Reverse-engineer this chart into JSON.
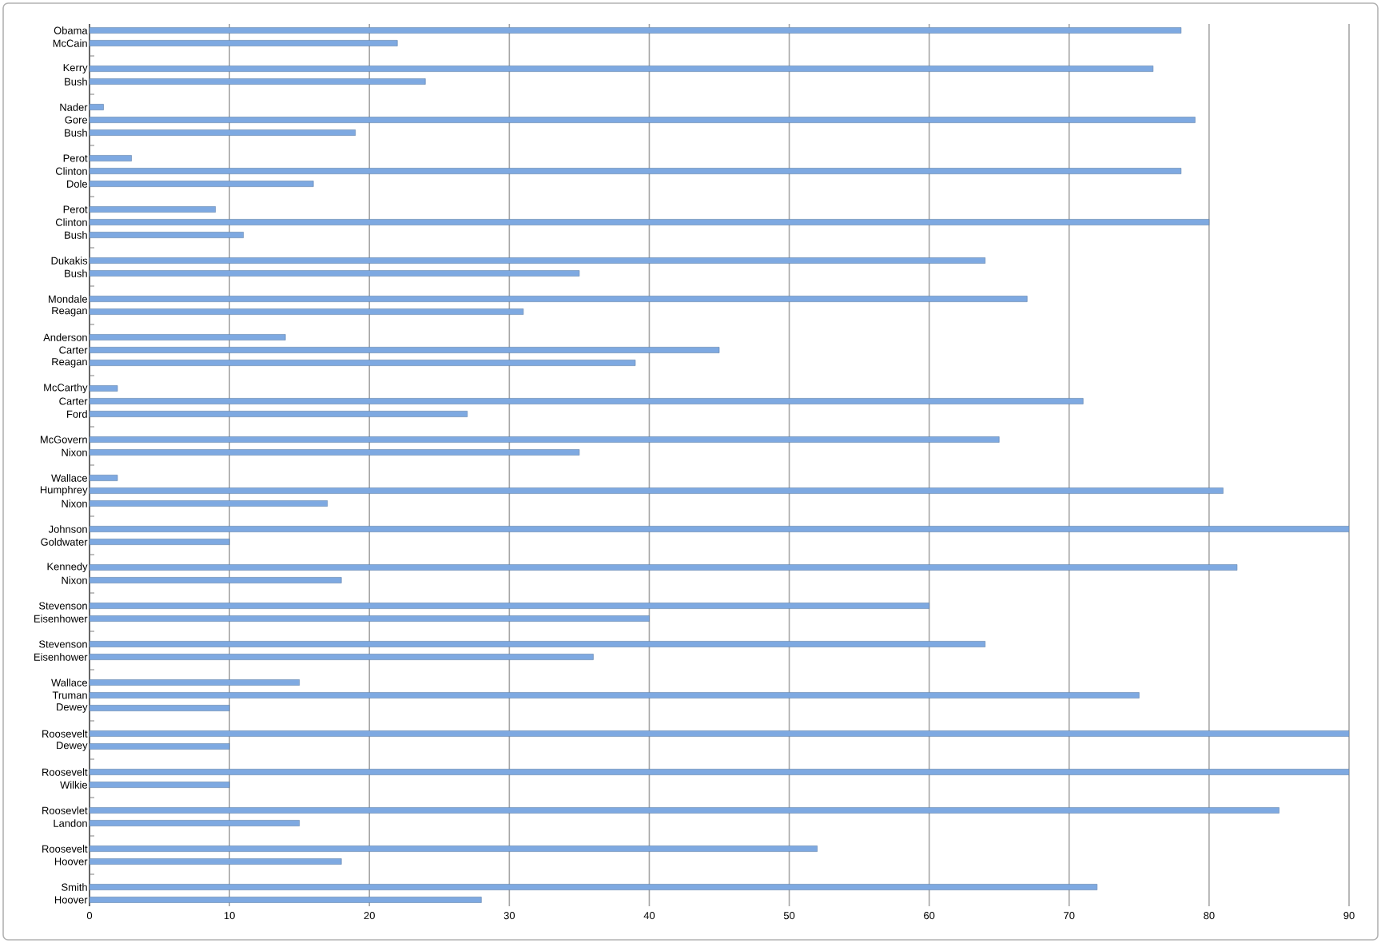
{
  "chart_data": {
    "type": "bar",
    "orientation": "horizontal",
    "color": "#7ea9e1",
    "grid": "x",
    "xlim": [
      0,
      90
    ],
    "xticks": [
      0,
      10,
      20,
      30,
      40,
      50,
      60,
      70,
      80,
      90
    ],
    "categories": [
      "Obama",
      "McCain",
      null,
      "Kerry",
      "Bush",
      null,
      "Nader",
      "Gore",
      "Bush",
      null,
      "Perot",
      "Clinton",
      "Dole",
      null,
      "Perot",
      "Clinton",
      "Bush",
      null,
      "Dukakis",
      "Bush",
      null,
      "Mondale",
      "Reagan",
      null,
      "Anderson",
      "Carter",
      "Reagan",
      null,
      "McCarthy",
      "Carter",
      "Ford",
      null,
      "McGovern",
      "Nixon",
      null,
      "Wallace",
      "Humphrey",
      "Nixon",
      null,
      "Johnson",
      "Goldwater",
      null,
      "Kennedy",
      "Nixon",
      null,
      "Stevenson",
      "Eisenhower",
      null,
      "Stevenson",
      "Eisenhower",
      null,
      "Wallace",
      "Truman",
      "Dewey",
      null,
      "Roosevelt",
      "Dewey",
      null,
      "Roosevelt",
      "Wilkie",
      null,
      "Roosevlet",
      "Landon",
      null,
      "Roosevelt",
      "Hoover",
      null,
      "Smith",
      "Hoover"
    ],
    "values": [
      78,
      22,
      null,
      76,
      24,
      null,
      1,
      79,
      19,
      null,
      3,
      78,
      16,
      null,
      9,
      80,
      11,
      null,
      64,
      35,
      null,
      67,
      31,
      null,
      14,
      45,
      39,
      null,
      2,
      71,
      27,
      null,
      65,
      35,
      null,
      2,
      81,
      17,
      null,
      90,
      10,
      null,
      82,
      18,
      null,
      60,
      40,
      null,
      64,
      36,
      null,
      15,
      75,
      10,
      null,
      90,
      10,
      null,
      90,
      10,
      null,
      85,
      15,
      null,
      52,
      18,
      null,
      72,
      28
    ]
  }
}
